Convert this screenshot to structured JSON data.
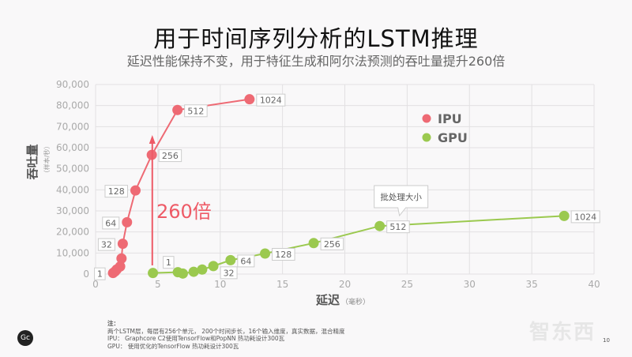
{
  "header": {
    "title": "用于时间序列分析的LSTM推理",
    "subtitle": "延迟性能保持不变，用于特征生成和阿尔法预测的吞吐量提升260倍"
  },
  "chart_data": {
    "type": "scatter",
    "xlabel": "延迟",
    "xlabel_unit": "（毫秒）",
    "ylabel": "吞吐量",
    "ylabel_unit": "（样本/秒）",
    "xlim": [
      0,
      40
    ],
    "ylim": [
      0,
      90000
    ],
    "xticks": [
      "0",
      "5",
      "10",
      "15",
      "20",
      "25",
      "30",
      "35",
      "40"
    ],
    "yticks": [
      "0",
      "10,000",
      "20,000",
      "30,000",
      "40,000",
      "50,000",
      "60,000",
      "70,000",
      "80,000",
      "90,000"
    ],
    "grid": true,
    "legend_position": "upper-middle",
    "series": [
      {
        "name": "IPU",
        "color": "#ee6a74",
        "points": [
          {
            "x": 1.4,
            "y": 500,
            "label": "1"
          },
          {
            "x": 1.55,
            "y": 1200,
            "label": ""
          },
          {
            "x": 1.7,
            "y": 2200,
            "label": ""
          },
          {
            "x": 1.97,
            "y": 3600,
            "label": ""
          },
          {
            "x": 2.08,
            "y": 7400,
            "label": ""
          },
          {
            "x": 2.18,
            "y": 14400,
            "label": "32"
          },
          {
            "x": 2.52,
            "y": 24600,
            "label": "64"
          },
          {
            "x": 3.2,
            "y": 39700,
            "label": "128"
          },
          {
            "x": 4.51,
            "y": 56600,
            "label": "256"
          },
          {
            "x": 6.57,
            "y": 77900,
            "label": "512"
          },
          {
            "x": 12.35,
            "y": 83000,
            "label": "1024"
          }
        ]
      },
      {
        "name": "GPU",
        "color": "#9bc94f",
        "points": [
          {
            "x": 4.6,
            "y": 500,
            "label": "1"
          },
          {
            "x": 6.6,
            "y": 900,
            "label": ""
          },
          {
            "x": 7.0,
            "y": 250,
            "label": ""
          },
          {
            "x": 7.87,
            "y": 1100,
            "label": ""
          },
          {
            "x": 8.55,
            "y": 2150,
            "label": ""
          },
          {
            "x": 9.45,
            "y": 3800,
            "label": "32"
          },
          {
            "x": 10.83,
            "y": 6600,
            "label": "64"
          },
          {
            "x": 13.6,
            "y": 9750,
            "label": "128"
          },
          {
            "x": 17.5,
            "y": 14700,
            "label": "256"
          },
          {
            "x": 22.8,
            "y": 22800,
            "label": "512"
          },
          {
            "x": 37.6,
            "y": 27600,
            "label": "1024"
          }
        ]
      }
    ],
    "annotations": {
      "speedup": "260倍",
      "callout": "批处理大小"
    }
  },
  "notes": {
    "heading": "注：",
    "lines": [
      "两个LSTM层，每层有256个单元， 200个时间步长，16个输入维度，真实数据，混合精度",
      "IPU： Graphcore C2使用TensorFlow和PopNN  热功耗设计300瓦",
      "GPU： 使用优化的TensorFlow  热功耗设计300瓦"
    ]
  },
  "footer": {
    "logo": "Gc",
    "page": "10",
    "watermark": "智东西"
  }
}
